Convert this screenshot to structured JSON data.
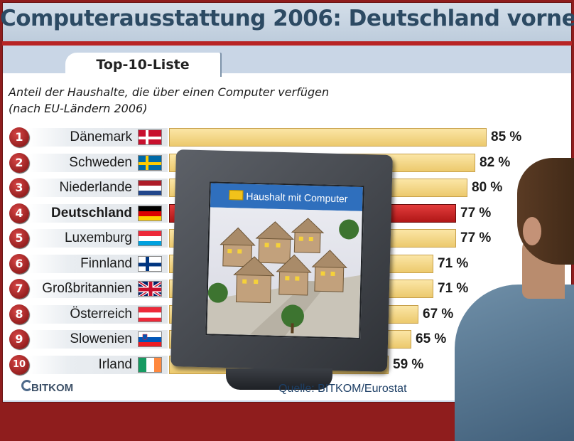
{
  "title": "Computerausstattung 2006: Deutschland vorne",
  "tab_label": "Top-10-Liste",
  "subtitle_line1": "Anteil der Haushalte, die über einen Computer verfügen",
  "subtitle_line2": "(nach EU-Ländern 2006)",
  "screen_title": "Haushalt mit Computer",
  "logo_text": "BITKOM",
  "source": "Quelle: BITKOM/Eurostat",
  "colors": {
    "bar": "#ecc96d",
    "bar_highlight": "#c21d1d",
    "rank_badge": "#a01818",
    "title": "#2c4a63"
  },
  "chart_data": {
    "type": "bar",
    "orientation": "horizontal",
    "title": "Computerausstattung 2006: Deutschland vorne",
    "subtitle": "Anteil der Haushalte, die über einen Computer verfügen (nach EU-Ländern 2006)",
    "unit": "%",
    "highlight": "Deutschland",
    "xlim": [
      0,
      100
    ],
    "grid": false,
    "ranks": [
      "1",
      "2",
      "3",
      "4",
      "5",
      "6",
      "7",
      "8",
      "9",
      "10"
    ],
    "categories": [
      "Dänemark",
      "Schweden",
      "Niederlande",
      "Deutschland",
      "Luxemburg",
      "Finnland",
      "Großbritannien",
      "Österreich",
      "Slowenien",
      "Irland"
    ],
    "values": [
      85,
      82,
      80,
      77,
      77,
      71,
      71,
      67,
      65,
      59
    ],
    "value_labels": [
      "85 %",
      "82 %",
      "80 %",
      "77 %",
      "77 %",
      "71 %",
      "71 %",
      "67 %",
      "65 %",
      "59 %"
    ],
    "flags": [
      "dk-flag-icon",
      "se-flag-icon",
      "nl-flag-icon",
      "de-flag-icon",
      "lu-flag-icon",
      "fi-flag-icon",
      "gb-flag-icon",
      "at-flag-icon",
      "si-flag-icon",
      "ie-flag-icon"
    ]
  }
}
